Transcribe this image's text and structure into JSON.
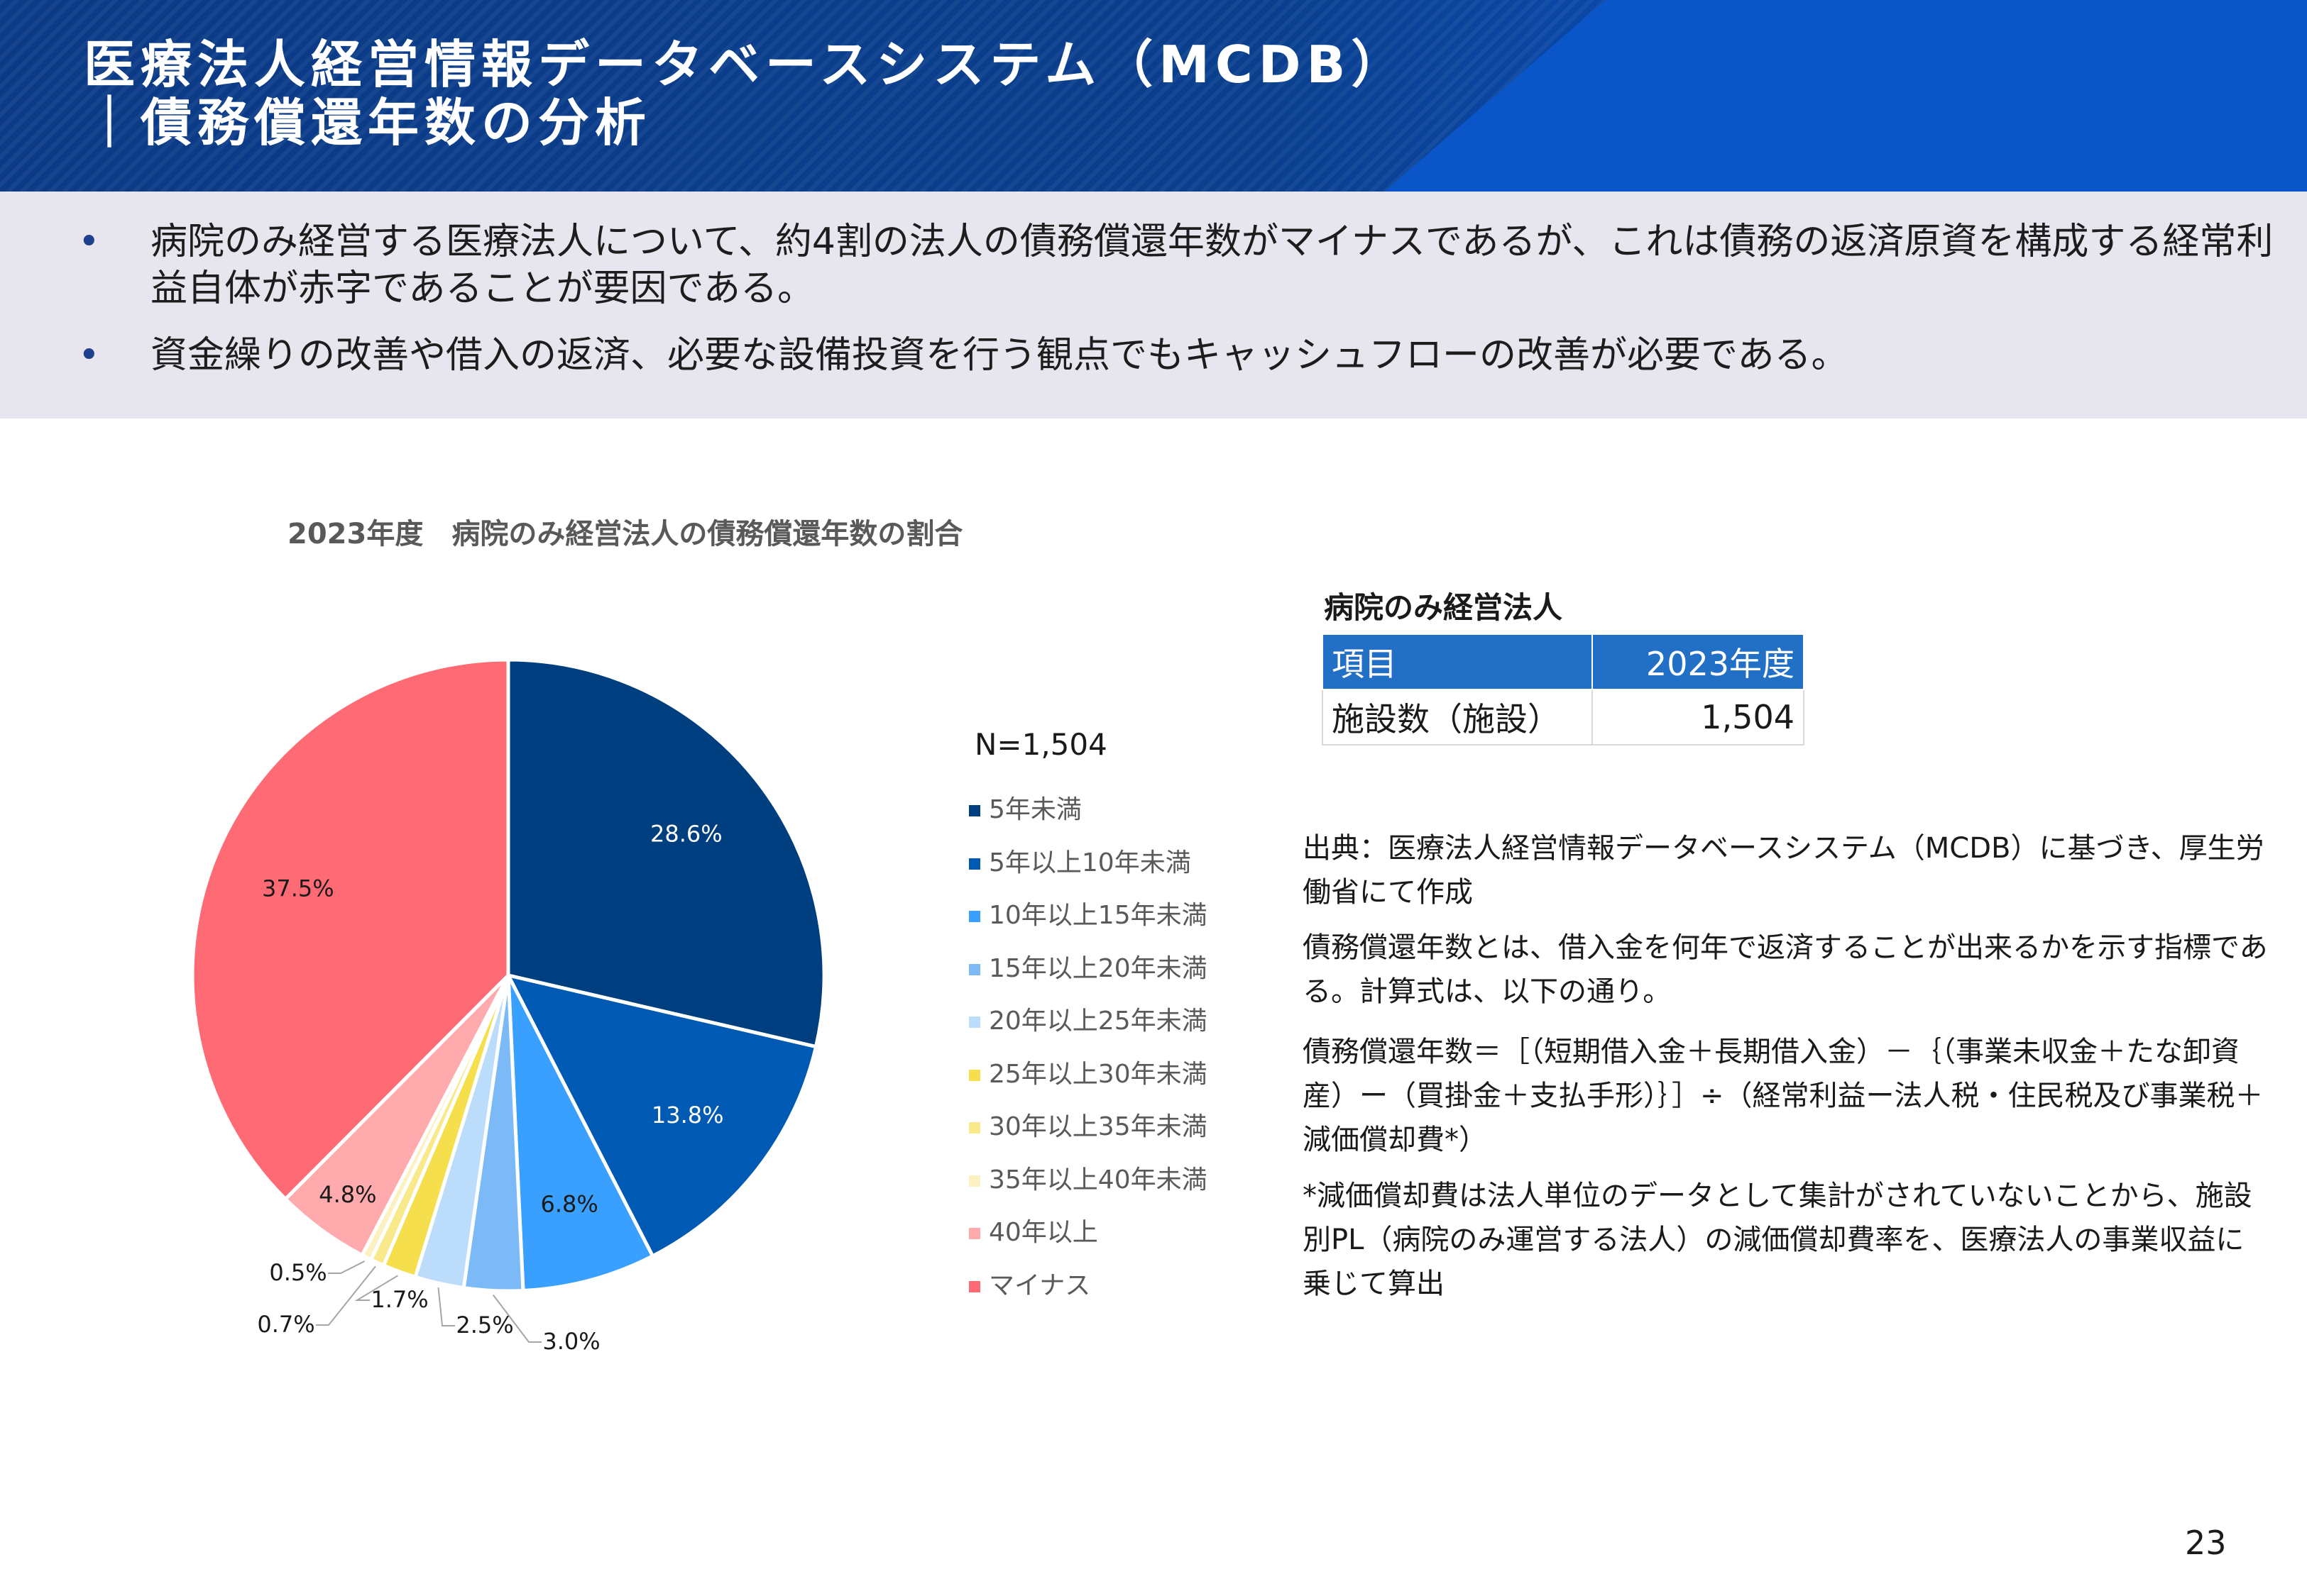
{
  "header": {
    "title_line1": "医療法人経営情報データベースシステム（MCDB）",
    "title_line2": "｜債務償還年数の分析"
  },
  "summary": {
    "bullets": [
      {
        "marker": "•",
        "text": "病院のみ経営する医療法人について、約4割の法人の債務償還年数がマイナスであるが、これは債務の返済原資を構成する経常利益自体が赤字であることが要因である。"
      },
      {
        "marker": "•",
        "text": "資金繰りの改善や借入の返済、必要な設備投資を行う観点でもキャッシュフローの改善が必要である。"
      }
    ]
  },
  "chart_data": {
    "type": "pie",
    "title": "2023年度　病院のみ経営法人の債務償還年数の割合",
    "n_label": "N=1,504",
    "legend_position": "right",
    "slices": [
      {
        "name": "5年未満",
        "value": 28.6,
        "label": "28.6%",
        "color": "#003f7f"
      },
      {
        "name": "5年以上10年未満",
        "value": 13.8,
        "label": "13.8%",
        "color": "#0059b3"
      },
      {
        "name": "10年以上15年未満",
        "value": 6.8,
        "label": "6.8%",
        "color": "#39a0ff"
      },
      {
        "name": "15年以上20年未満",
        "value": 3.0,
        "label": "3.0%",
        "color": "#7bbaf7"
      },
      {
        "name": "20年以上25年未満",
        "value": 2.5,
        "label": "2.5%",
        "color": "#bcdcfb"
      },
      {
        "name": "25年以上30年未満",
        "value": 1.7,
        "label": "1.7%",
        "color": "#f5df4d"
      },
      {
        "name": "30年以上35年未満",
        "value": 0.7,
        "label": "0.7%",
        "color": "#f8e98a"
      },
      {
        "name": "35年以上40年未満",
        "value": 0.5,
        "label": "0.5%",
        "color": "#fbf1c2"
      },
      {
        "name": "40年以上",
        "value": 4.8,
        "label": "4.8%",
        "color": "#ffaaad"
      },
      {
        "name": "マイナス",
        "value": 37.5,
        "label": "37.5%",
        "color": "#ff6b74"
      }
    ]
  },
  "table": {
    "caption": "病院のみ経営法人",
    "headers": [
      "項目",
      "2023年度"
    ],
    "rows": [
      [
        "施設数（施設）",
        "1,504"
      ]
    ]
  },
  "notes": {
    "source": "出典：医療法人経営情報データベースシステム（MCDB）に基づき、厚生労働省にて作成",
    "definition": "債務償還年数とは、借入金を何年で返済することが出来るかを示す指標である。計算式は、以下の通り。",
    "formula": "債務償還年数＝［（短期借入金＋長期借入金）－｛（事業未収金＋たな卸資産）ー（買掛金＋支払手形）｝］÷（経常利益ー法人税・住民税及び事業税＋減価償却費*）",
    "footnote": "*減価償却費は法人単位のデータとして集計がされていないことから、施設別PL（病院のみ運営する法人）の減価償却費率を、医療法人の事業収益に乗じて算出"
  },
  "page_number": "23"
}
